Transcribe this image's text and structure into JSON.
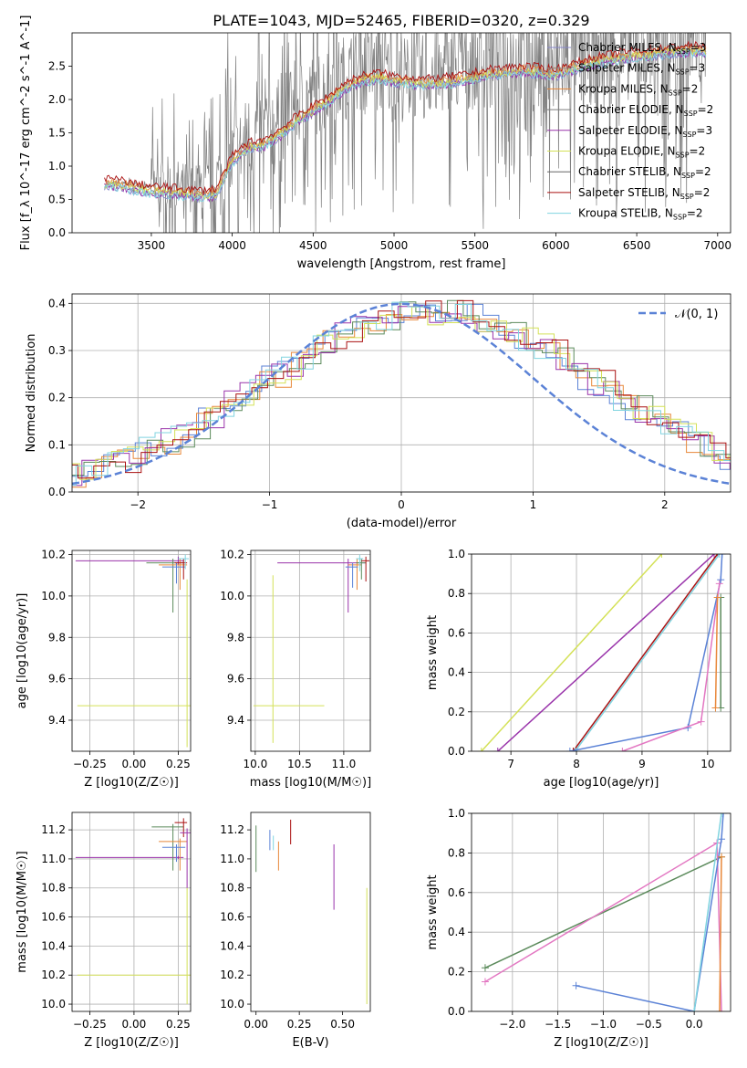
{
  "title": "PLATE=1043, MJD=52465, FIBERID=0320, z=0.329",
  "chart_data": [
    {
      "id": "spectrum",
      "type": "line",
      "xlabel": "wavelength [Angstrom, rest frame]",
      "ylabel": "Flux [f_λ 10^-17 erg cm^-2 s^-1 A^-1]",
      "xlim": [
        3010,
        7080
      ],
      "ylim": [
        0,
        3.0
      ],
      "xticks": [
        3500,
        4000,
        4500,
        5000,
        5500,
        6000,
        6500,
        7000
      ],
      "yticks": [
        0.0,
        0.5,
        1.0,
        1.5,
        2.0,
        2.5
      ],
      "grid": false,
      "legend_position": "top-right",
      "data_x": [
        3210,
        3300,
        3400,
        3500,
        3600,
        3700,
        3800,
        3900,
        4000,
        4100,
        4200,
        4300,
        4400,
        4500,
        4600,
        4700,
        4800,
        4900,
        5000,
        5200,
        5400,
        5600,
        5800,
        6000,
        6200,
        6400,
        6600,
        6800,
        6930
      ],
      "data_y": [
        0.7,
        0.75,
        0.72,
        0.68,
        0.7,
        0.62,
        0.6,
        0.75,
        1.05,
        1.45,
        1.55,
        1.7,
        1.95,
        2.05,
        2.2,
        2.35,
        2.45,
        2.4,
        2.3,
        2.35,
        2.45,
        2.55,
        2.6,
        2.6,
        2.7,
        2.75,
        2.85,
        2.9,
        2.9
      ],
      "model_x": [
        3210,
        3300,
        3400,
        3500,
        3600,
        3700,
        3800,
        3900,
        4000,
        4100,
        4200,
        4300,
        4400,
        4500,
        4600,
        4700,
        4800,
        4900,
        5000,
        5200,
        5400,
        5600,
        5800,
        6000,
        6200,
        6400,
        6600,
        6800,
        6930
      ],
      "model_y": [
        0.75,
        0.74,
        0.68,
        0.64,
        0.63,
        0.6,
        0.58,
        0.6,
        1.1,
        1.3,
        1.35,
        1.5,
        1.7,
        1.85,
        2.0,
        2.2,
        2.3,
        2.35,
        2.3,
        2.25,
        2.3,
        2.4,
        2.45,
        2.4,
        2.55,
        2.65,
        2.7,
        2.75,
        2.75
      ],
      "legend": [
        {
          "label": "Chabrier MILES, N_SSP=3",
          "color": "#8888cc"
        },
        {
          "label": "Salpeter MILES, N_SSP=3",
          "color": "#8c8c8c"
        },
        {
          "label": "Kroupa MILES, N_SSP=2",
          "color": "#e8883a"
        },
        {
          "label": "Chabrier ELODIE, N_SSP=2",
          "color": "#7a7a7a"
        },
        {
          "label": "Salpeter ELODIE, N_SSP=3",
          "color": "#9933aa"
        },
        {
          "label": "Kroupa ELODIE, N_SSP=2",
          "color": "#d4e157"
        },
        {
          "label": "Chabrier STELIB, N_SSP=2",
          "color": "#666666"
        },
        {
          "label": "Salpeter STELIB, N_SSP=2",
          "color": "#aa1111"
        },
        {
          "label": "Kroupa STELIB, N_SSP=2",
          "color": "#80d4e0"
        }
      ]
    },
    {
      "id": "residuals",
      "type": "line",
      "xlabel": "(data-model)/error",
      "ylabel": "Normed distribution",
      "xlim": [
        -2.5,
        2.5
      ],
      "ylim": [
        0,
        0.42
      ],
      "xticks": [
        -2,
        -1,
        0,
        1,
        2
      ],
      "yticks": [
        0.0,
        0.1,
        0.2,
        0.3,
        0.4
      ],
      "grid": true,
      "legend_position": "top-right",
      "legend": [
        {
          "label": "𝒩(0, 1)",
          "color": "#5b82d6"
        }
      ],
      "series_colors": [
        "#5b82d6",
        "#e8883a",
        "#5b8a5b",
        "#9933aa",
        "#d4e157",
        "#aa1111",
        "#80d4e0"
      ]
    },
    {
      "id": "age_vs_z",
      "type": "scatter",
      "xlabel": "Z [log10(Z/Z☉)]",
      "ylabel": "age  [log10(age/yr)]",
      "xlim": [
        -0.35,
        0.32
      ],
      "ylim": [
        9.25,
        10.22
      ],
      "xticks": [
        -0.25,
        0.0,
        0.25
      ],
      "yticks": [
        9.4,
        9.6,
        9.8,
        10.0,
        10.2
      ],
      "grid": true
    },
    {
      "id": "age_vs_mass",
      "type": "scatter",
      "xlabel": "mass [log10(M/M☉)]",
      "ylabel": "",
      "xlim": [
        9.95,
        11.3
      ],
      "ylim": [
        9.25,
        10.22
      ],
      "xticks": [
        10.0,
        10.5,
        11.0
      ],
      "yticks": [
        9.4,
        9.6,
        9.8,
        10.0,
        10.2
      ],
      "grid": true
    },
    {
      "id": "weight_vs_age",
      "type": "line",
      "xlabel": "age  [log10(age/yr)]",
      "ylabel": "mass weight",
      "xlim": [
        6.4,
        10.35
      ],
      "ylim": [
        0,
        1.0
      ],
      "xticks": [
        7,
        8,
        9,
        10
      ],
      "yticks": [
        0.0,
        0.2,
        0.4,
        0.6,
        0.8,
        1.0
      ],
      "grid": true
    },
    {
      "id": "mass_vs_z",
      "type": "scatter",
      "xlabel": "Z [log10(Z/Z☉)]",
      "ylabel": "mass [log10(M/M☉)]",
      "xlim": [
        -0.35,
        0.32
      ],
      "ylim": [
        9.95,
        11.32
      ],
      "xticks": [
        -0.25,
        0.0,
        0.25
      ],
      "yticks": [
        10.0,
        10.2,
        10.4,
        10.6,
        10.8,
        11.0,
        11.2
      ],
      "grid": true
    },
    {
      "id": "mass_vs_ebv",
      "type": "scatter",
      "xlabel": "E(B-V)",
      "ylabel": "",
      "xlim": [
        -0.03,
        0.66
      ],
      "ylim": [
        9.95,
        11.32
      ],
      "xticks": [
        0.0,
        0.25,
        0.5
      ],
      "yticks": [
        10.0,
        10.2,
        10.4,
        10.6,
        10.8,
        11.0,
        11.2
      ],
      "grid": false
    },
    {
      "id": "weight_vs_z",
      "type": "line",
      "xlabel": "Z [log10(Z/Z☉)]",
      "ylabel": "mass weight",
      "xlim": [
        -2.45,
        0.4
      ],
      "ylim": [
        0,
        1.0
      ],
      "xticks": [
        -2.0,
        -1.5,
        -1.0,
        -0.5,
        0.0
      ],
      "yticks": [
        0.0,
        0.2,
        0.4,
        0.6,
        0.8,
        1.0
      ],
      "grid": true
    }
  ]
}
